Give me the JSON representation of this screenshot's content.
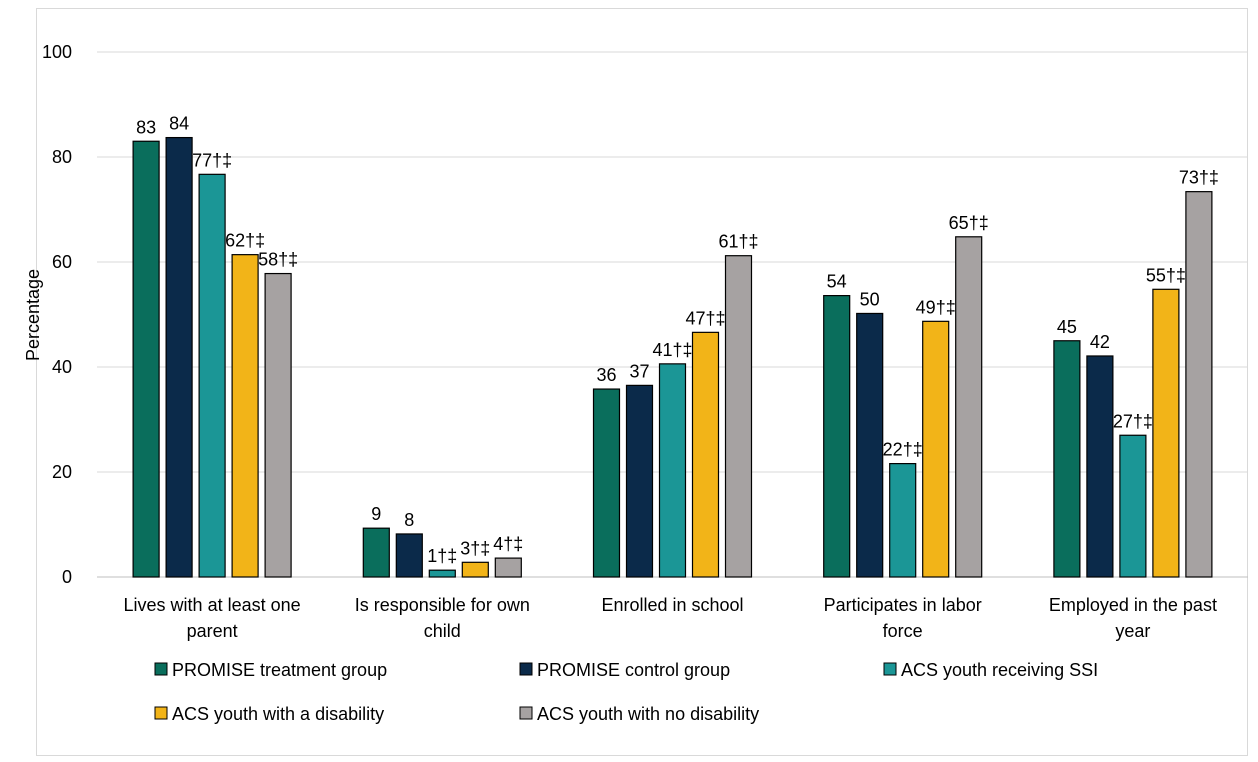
{
  "chart_data": {
    "type": "bar",
    "ylabel": "Percentage",
    "ylim": [
      0,
      100
    ],
    "yticks": [
      0,
      20,
      40,
      60,
      80,
      100
    ],
    "grid": true,
    "legend_placement": "bottom",
    "categories": [
      [
        "Lives with at least one",
        "parent"
      ],
      [
        "Is responsible for own",
        "child"
      ],
      [
        "Enrolled in school"
      ],
      [
        "Participates in labor",
        "force"
      ],
      [
        "Employed in the past",
        "year"
      ]
    ],
    "series": [
      {
        "name": "PROMISE treatment group",
        "color": "#0a6e5c",
        "values": [
          83,
          9,
          36,
          54,
          45
        ],
        "plotted": [
          83,
          9.3,
          35.8,
          53.6,
          45
        ],
        "labels": [
          "83",
          "9",
          "36",
          "54",
          "45"
        ]
      },
      {
        "name": "PROMISE control group",
        "color": "#0b2a4a",
        "values": [
          84,
          8,
          37,
          50,
          42
        ],
        "plotted": [
          83.7,
          8.2,
          36.5,
          50.2,
          42.1
        ],
        "labels": [
          "84",
          "8",
          "37",
          "50",
          "42"
        ]
      },
      {
        "name": "ACS youth receiving SSI",
        "color": "#1b9696",
        "values": [
          77,
          1,
          41,
          22,
          27
        ],
        "plotted": [
          76.7,
          1.3,
          40.6,
          21.6,
          27
        ],
        "labels": [
          "77†‡",
          "1†‡",
          "41†‡",
          "22†‡",
          "27†‡"
        ]
      },
      {
        "name": "ACS youth with a disability",
        "color": "#f2b418",
        "values": [
          62,
          3,
          47,
          49,
          55
        ],
        "plotted": [
          61.4,
          2.8,
          46.6,
          48.7,
          54.8
        ],
        "labels": [
          "62†‡",
          "3†‡",
          "47†‡",
          "49†‡",
          "55†‡"
        ]
      },
      {
        "name": "ACS youth with no disability",
        "color": "#a6a2a2",
        "values": [
          58,
          4,
          61,
          65,
          73
        ],
        "plotted": [
          57.8,
          3.6,
          61.2,
          64.8,
          73.4
        ],
        "labels": [
          "58†‡",
          "4†‡",
          "61†‡",
          "65†‡",
          "73†‡"
        ]
      }
    ],
    "gridline_color": "#d9d9d9",
    "bar_outline_color": "#000000"
  }
}
